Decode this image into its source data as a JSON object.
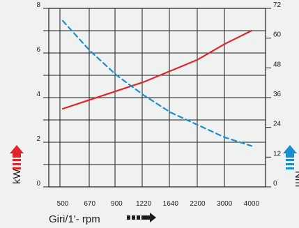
{
  "chart_data": {
    "type": "line",
    "xlabel": "Giri/1'- rpm",
    "x_categories": [
      "500",
      "670",
      "900",
      "1220",
      "1640",
      "2200",
      "3000",
      "4000"
    ],
    "left_axis": {
      "label": "kW",
      "ylim": [
        0,
        8
      ],
      "ticks": [
        "0",
        "2",
        "4",
        "6",
        "8"
      ]
    },
    "right_axis": {
      "label": "Nm",
      "ylim": [
        0,
        72
      ],
      "ticks": [
        "0",
        "12",
        "24",
        "36",
        "48",
        "60",
        "72"
      ]
    },
    "grid": true,
    "series": [
      {
        "axis": "left",
        "color": "#e0262b",
        "style": "solid",
        "x_index": [
          0,
          1,
          2,
          3,
          4,
          5,
          6,
          7
        ],
        "values": [
          3.5,
          3.9,
          4.3,
          4.7,
          5.2,
          5.7,
          6.4,
          7.0
        ]
      },
      {
        "axis": "right",
        "color": "#1a8fd0",
        "style": "dashed",
        "x_index": [
          0,
          1,
          2,
          3,
          4,
          5,
          6,
          7
        ],
        "values": [
          67,
          55,
          45,
          37,
          30,
          25,
          20,
          16.5
        ]
      }
    ],
    "colors": {
      "kw_arrow": "#e0262b",
      "nm_arrow": "#1a8fd0",
      "rpm_arrow": "#1c1c1c"
    }
  }
}
